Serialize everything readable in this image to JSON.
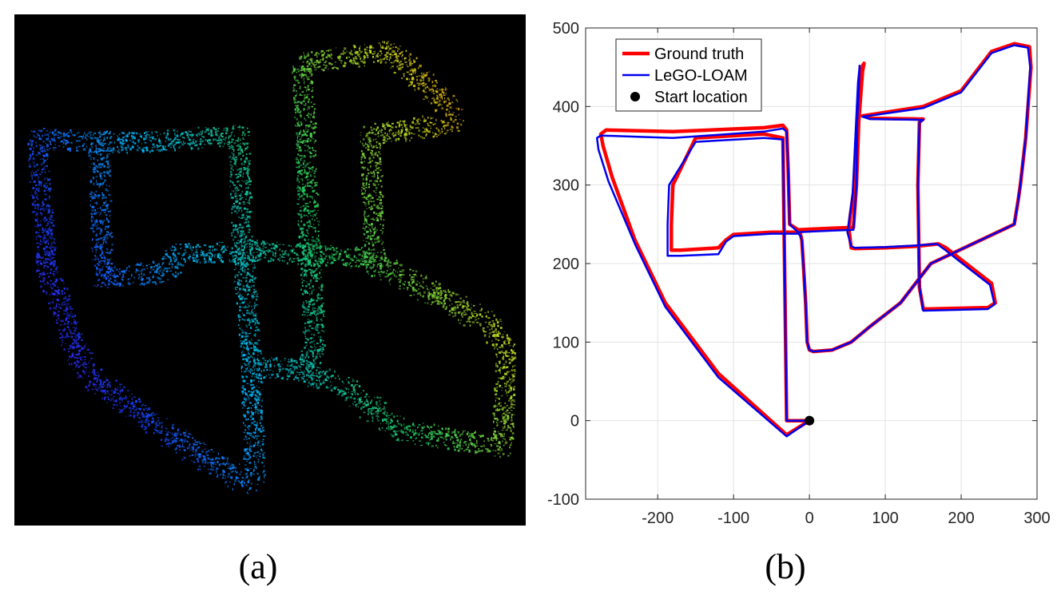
{
  "panel_a": {
    "caption": "(a)",
    "icon": "point-cloud-map",
    "colormap": [
      "#5b00d6",
      "#1a3cff",
      "#00c0ff",
      "#20d060",
      "#c8e020",
      "#ff6a00"
    ]
  },
  "panel_b": {
    "caption": "(b)"
  },
  "chart_data": {
    "type": "line",
    "title": "",
    "xlabel": "",
    "ylabel": "",
    "xlim": [
      -295,
      300
    ],
    "ylim": [
      -100,
      500
    ],
    "xticks": [
      -200,
      -100,
      0,
      100,
      200,
      300
    ],
    "yticks": [
      -100,
      0,
      100,
      200,
      300,
      400,
      500
    ],
    "grid": true,
    "legend_position": "top-left",
    "series": [
      {
        "name": "Ground truth",
        "color": "#ff0000",
        "x": [
          0,
          -30,
          -120,
          -190,
          -230,
          -260,
          -272,
          -275,
          -268,
          -180,
          -60,
          -35,
          -30,
          -28,
          -26,
          -15,
          30,
          58,
          62,
          65,
          68,
          70,
          72,
          70,
          66,
          62,
          58,
          54,
          52,
          55,
          60,
          100,
          140,
          170,
          180,
          200,
          240,
          245,
          235,
          150,
          145,
          143,
          145,
          150,
          80,
          70,
          150,
          200,
          240,
          270,
          290,
          292,
          285,
          278,
          275,
          270,
          160,
          120,
          80,
          55,
          30,
          5,
          0,
          -3,
          -5,
          -8,
          -10,
          -12,
          -15,
          -20,
          -20,
          -50,
          -100,
          -110,
          -120,
          -170,
          -182,
          -182,
          -180,
          -150,
          -60,
          -35,
          -30,
          -20,
          0
        ],
        "y": [
          0,
          -18,
          60,
          150,
          230,
          310,
          350,
          365,
          370,
          368,
          373,
          376,
          370,
          320,
          250,
          243,
          245,
          246,
          300,
          380,
          420,
          445,
          455,
          452,
          430,
          350,
          290,
          262,
          244,
          220,
          219,
          220,
          222,
          225,
          220,
          205,
          175,
          150,
          144,
          142,
          170,
          300,
          380,
          384,
          385,
          388,
          400,
          420,
          470,
          480,
          476,
          450,
          360,
          300,
          280,
          250,
          200,
          150,
          120,
          100,
          90,
          88,
          90,
          100,
          150,
          200,
          230,
          238,
          240,
          240,
          240,
          240,
          237,
          230,
          220,
          217,
          217,
          250,
          300,
          360,
          365,
          360,
          0,
          0,
          0
        ]
      },
      {
        "name": "LeGO-LOAM",
        "color": "#0000ee",
        "x": [
          0,
          -30,
          -120,
          -190,
          -230,
          -265,
          -278,
          -280,
          -275,
          -180,
          -60,
          -35,
          -30,
          -28,
          -26,
          -15,
          30,
          58,
          62,
          63,
          65,
          66,
          66,
          66,
          64,
          60,
          57,
          53,
          50,
          55,
          60,
          100,
          140,
          168,
          178,
          198,
          238,
          244,
          235,
          150,
          145,
          143,
          145,
          150,
          80,
          70,
          150,
          200,
          240,
          270,
          288,
          291,
          285,
          278,
          275,
          270,
          160,
          120,
          80,
          55,
          30,
          5,
          0,
          -3,
          -5,
          -8,
          -10,
          -12,
          -15,
          -20,
          -20,
          -50,
          -100,
          -110,
          -120,
          -170,
          -187,
          -187,
          -185,
          -150,
          -60,
          -35,
          -30,
          -20,
          0
        ],
        "y": [
          0,
          -20,
          55,
          145,
          225,
          305,
          345,
          360,
          363,
          360,
          368,
          372,
          368,
          320,
          250,
          240,
          242,
          243,
          300,
          380,
          420,
          448,
          452,
          450,
          430,
          350,
          290,
          260,
          240,
          222,
          220,
          221,
          223,
          225,
          218,
          203,
          173,
          148,
          142,
          140,
          170,
          300,
          380,
          383,
          384,
          387,
          398,
          418,
          468,
          478,
          475,
          450,
          360,
          300,
          280,
          250,
          200,
          150,
          120,
          100,
          90,
          88,
          90,
          100,
          150,
          200,
          230,
          236,
          238,
          238,
          238,
          238,
          235,
          228,
          212,
          210,
          210,
          250,
          300,
          355,
          360,
          358,
          0,
          0,
          0
        ]
      },
      {
        "name": "Start location",
        "color": "#000000",
        "marker": "circle",
        "x": [
          0
        ],
        "y": [
          0
        ]
      }
    ]
  }
}
